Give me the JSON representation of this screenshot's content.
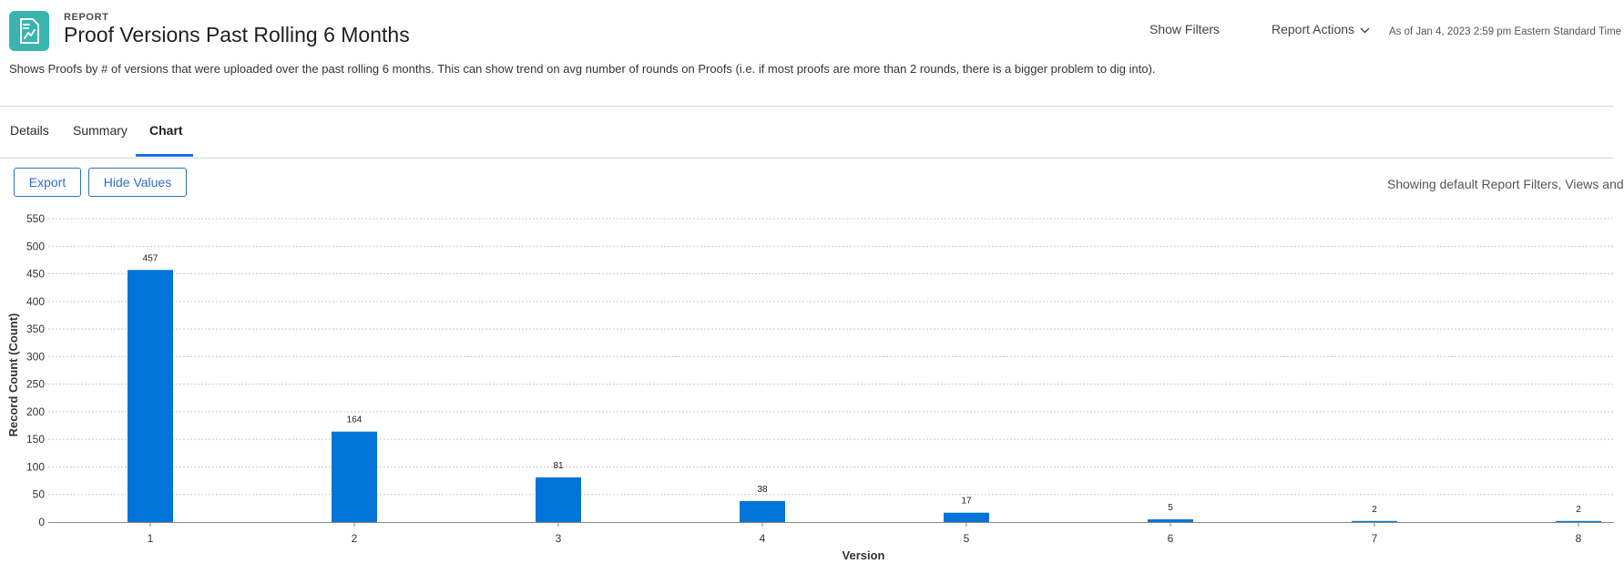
{
  "header": {
    "kicker": "REPORT",
    "title": "Proof Versions Past Rolling 6 Months",
    "show_filters": "Show Filters",
    "report_actions": "Report Actions",
    "as_of": "As of Jan 4, 2023 2:59 pm Eastern Standard Time",
    "description": "Shows Proofs by # of versions that were uploaded over the past rolling 6 months. This can show trend on avg number of rounds on Proofs (i.e. if most proofs are more than 2 rounds, there is a bigger problem to dig into)."
  },
  "tabs": [
    {
      "label": "Details"
    },
    {
      "label": "Summary"
    },
    {
      "label": "Chart",
      "active": true
    }
  ],
  "toolbar": {
    "export_label": "Export",
    "hide_values_label": "Hide Values",
    "showing_note": "Showing default Report Filters, Views and"
  },
  "colors": {
    "bar": "#0074d9",
    "accent": "#1473e6",
    "icon_bg": "#39b4b0"
  },
  "icons": {
    "report": "report-document-icon",
    "dropdown": "chevron-down-icon"
  },
  "chart_data": {
    "type": "bar",
    "title": "",
    "xlabel": "Version",
    "ylabel": "Record Count (Count)",
    "categories": [
      "1",
      "2",
      "3",
      "4",
      "5",
      "6",
      "7",
      "8"
    ],
    "values": [
      457,
      164,
      81,
      38,
      17,
      5,
      2,
      2
    ],
    "show_values": true,
    "ylim": [
      0,
      550
    ],
    "yticks": [
      0,
      50,
      100,
      150,
      200,
      250,
      300,
      350,
      400,
      450,
      500,
      550
    ],
    "grid": true,
    "legend": "none"
  }
}
